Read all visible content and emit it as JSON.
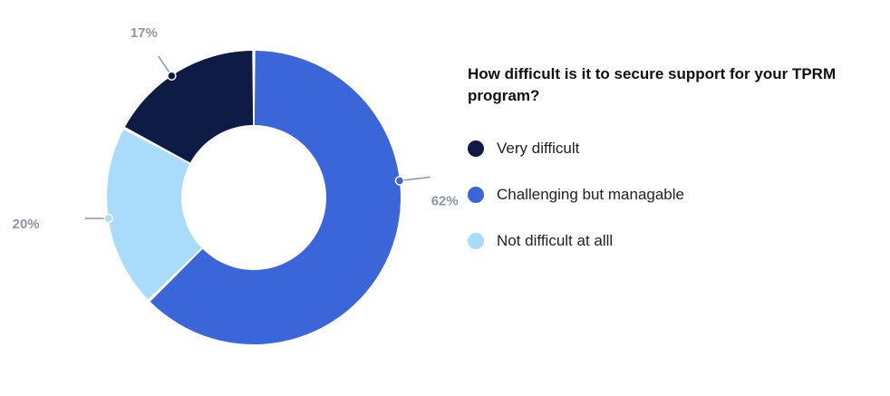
{
  "chart_data": {
    "type": "pie",
    "title": "How difficult is it to secure support for your TPRM program?",
    "categories": [
      "Very difficult",
      "Challenging but managable",
      "Not difficult at alll"
    ],
    "values": [
      17,
      62,
      20
    ],
    "value_labels": [
      "17%",
      "62%",
      "20%"
    ],
    "colors": [
      "#0d1b45",
      "#3a66d9",
      "#a8dcfa"
    ],
    "legend_placement": "right",
    "style": "donut"
  }
}
